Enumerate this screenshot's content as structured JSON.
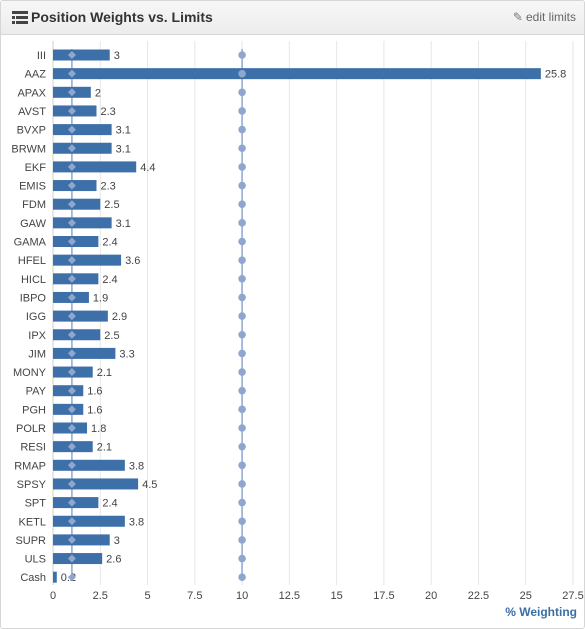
{
  "header": {
    "title": "Position Weights vs. Limits",
    "edit_label": "edit limits"
  },
  "chart_data": {
    "type": "bar",
    "orientation": "horizontal",
    "categories": [
      "III",
      "AAZ",
      "APAX",
      "AVST",
      "BVXP",
      "BRWM",
      "EKF",
      "EMIS",
      "FDM",
      "GAW",
      "GAMA",
      "HFEL",
      "HICL",
      "IBPO",
      "IGG",
      "IPX",
      "JIM",
      "MONY",
      "PAY",
      "PGH",
      "POLR",
      "RESI",
      "RMAP",
      "SPSY",
      "SPT",
      "KETL",
      "SUPR",
      "ULS",
      "Cash"
    ],
    "values": [
      3,
      25.8,
      2,
      2.3,
      3.1,
      3.1,
      4.4,
      2.3,
      2.5,
      3.1,
      2.4,
      3.6,
      2.4,
      1.9,
      2.9,
      2.5,
      3.3,
      2.1,
      1.6,
      1.6,
      1.8,
      2.1,
      3.8,
      4.5,
      2.4,
      3.8,
      3,
      2.6,
      0.2
    ],
    "value_labels": [
      "3",
      "25.8",
      "2",
      "2.3",
      "3.1",
      "3.1",
      "4.4",
      "2.3",
      "2.5",
      "3.1",
      "2.4",
      "3.6",
      "2.4",
      "1.9",
      "2.9",
      "2.5",
      "3.3",
      "2.1",
      "1.6",
      "1.6",
      "1.8",
      "2.1",
      "3.8",
      "4.5",
      "2.4",
      "3.8",
      "3",
      "2.6",
      "0.2"
    ],
    "lower_limit": 1,
    "upper_limit": 10,
    "xlim": [
      0,
      27.5
    ],
    "xticks": [
      "0",
      "2.5",
      "5",
      "7.5",
      "10",
      "12.5",
      "15",
      "17.5",
      "20",
      "22.5",
      "25",
      "27.5"
    ],
    "xlabel": "% Weighting",
    "grid": true,
    "colors": {
      "bar": "#3d6fa8",
      "limit_line": "#8fa7cf",
      "grid": "#e6e6e6",
      "axis_title": "#3a6ea5"
    }
  }
}
